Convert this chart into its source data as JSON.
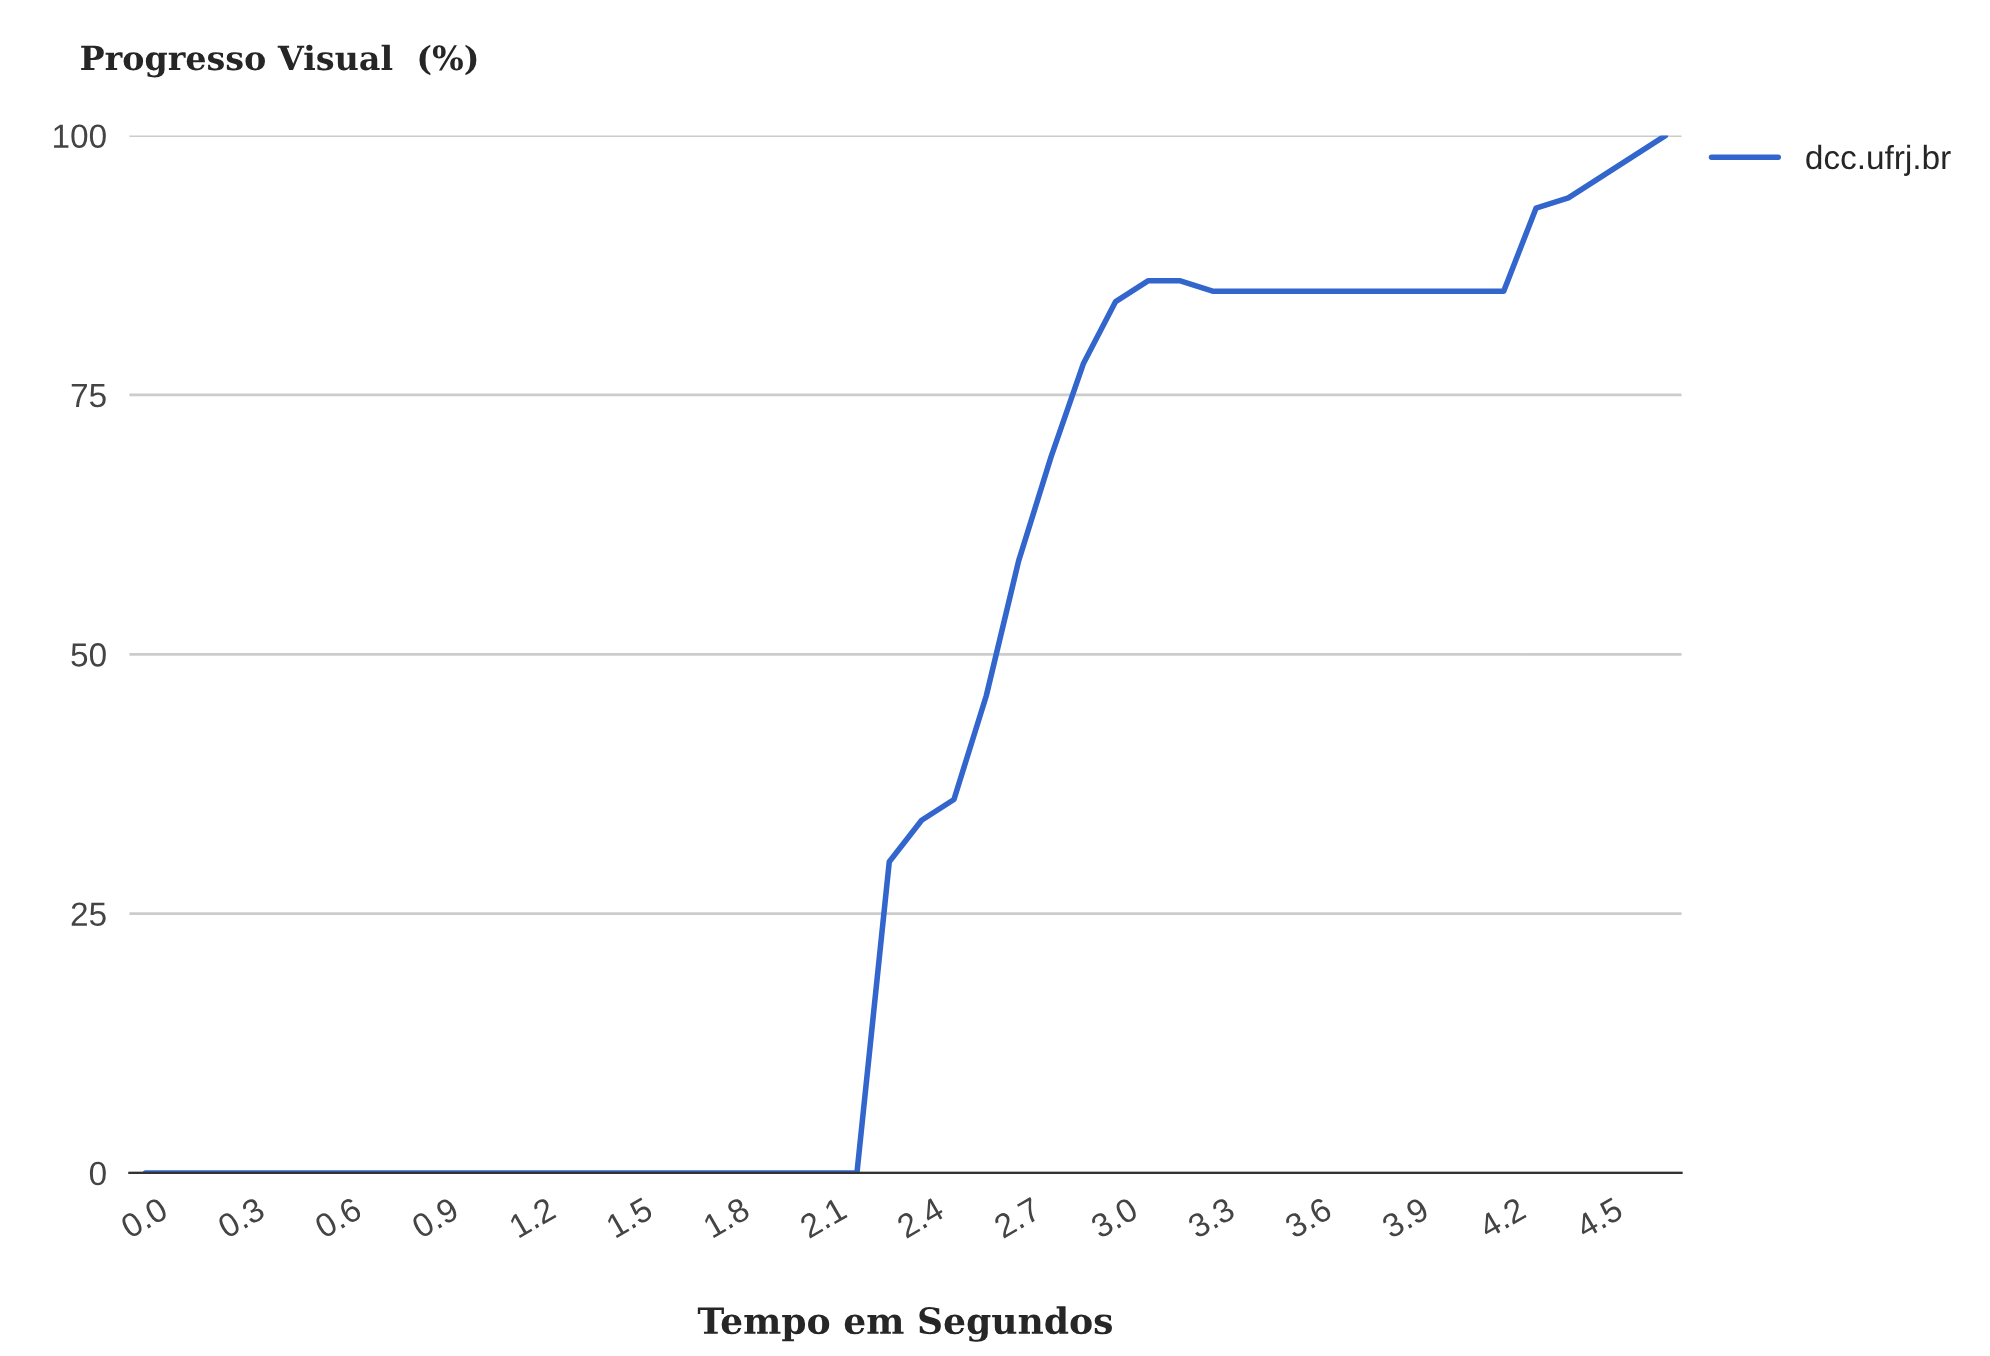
{
  "chart_data": {
    "type": "line",
    "title": "Progresso Visual  (%)",
    "xlabel": "Tempo em Segundos",
    "series": [
      {
        "name": "dcc.ufrj.br",
        "color": "#3366cc",
        "x": [
          0,
          0.1,
          0.2,
          0.3,
          0.4,
          0.5,
          0.6,
          0.7,
          0.8,
          0.9,
          1.0,
          1.1,
          1.2,
          1.3,
          1.4,
          1.5,
          1.6,
          1.7,
          1.8,
          1.9,
          2.0,
          2.1,
          2.2,
          2.3,
          2.4,
          2.5,
          2.6,
          2.7,
          2.8,
          2.9,
          3.0,
          3.1,
          3.2,
          3.3,
          3.4,
          3.5,
          3.6,
          3.7,
          3.8,
          3.9,
          4.0,
          4.1,
          4.2,
          4.3,
          4.4,
          4.5,
          4.6,
          4.7
        ],
        "values": [
          0,
          0,
          0,
          0,
          0,
          0,
          0,
          0,
          0,
          0,
          0,
          0,
          0,
          0,
          0,
          0,
          0,
          0,
          0,
          0,
          0,
          0,
          0,
          30,
          34,
          36,
          46,
          59,
          69,
          78,
          84,
          86,
          86,
          85,
          85,
          85,
          85,
          85,
          85,
          85,
          85,
          85,
          85,
          93,
          94,
          96,
          98,
          100
        ]
      }
    ],
    "xlim": [
      -0.05,
      4.75
    ],
    "ylim": [
      0,
      100
    ],
    "xticks": [
      {
        "value": 0,
        "label": "0.0"
      },
      {
        "value": 0.3,
        "label": "0.3"
      },
      {
        "value": 0.6,
        "label": "0.6"
      },
      {
        "value": 0.9,
        "label": "0.9"
      },
      {
        "value": 1.2,
        "label": "1.2"
      },
      {
        "value": 1.5,
        "label": "1.5"
      },
      {
        "value": 1.8,
        "label": "1.8"
      },
      {
        "value": 2.1,
        "label": "2.1"
      },
      {
        "value": 2.4,
        "label": "2.4"
      },
      {
        "value": 2.7,
        "label": "2.7"
      },
      {
        "value": 3.0,
        "label": "3.0"
      },
      {
        "value": 3.3,
        "label": "3.3"
      },
      {
        "value": 3.6,
        "label": "3.6"
      },
      {
        "value": 3.9,
        "label": "3.9"
      },
      {
        "value": 4.2,
        "label": "4.2"
      },
      {
        "value": 4.5,
        "label": "4.5"
      }
    ],
    "yticks": [
      0,
      25,
      50,
      75,
      100
    ],
    "grid": "y",
    "legend": "top right",
    "marker": "none",
    "line_style": "solid"
  }
}
